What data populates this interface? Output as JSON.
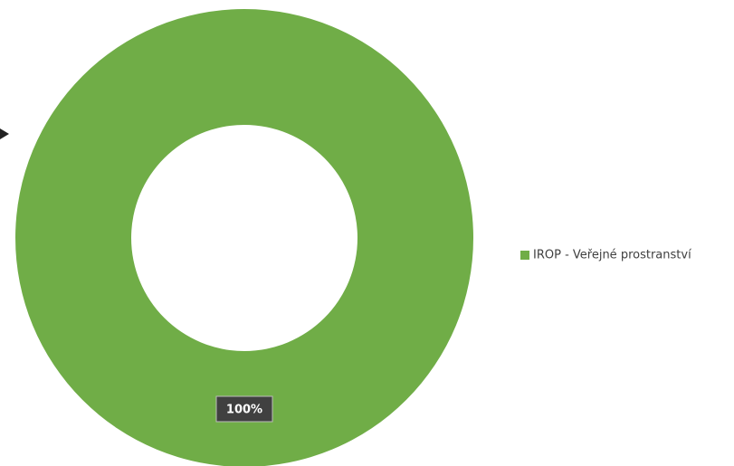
{
  "chart_data": {
    "type": "donut",
    "categories": [
      "IROP - Veřejné prostranství"
    ],
    "values": [
      100
    ],
    "value_labels": [
      "100%"
    ],
    "colors": [
      "#70ad47"
    ],
    "legend": "right"
  }
}
